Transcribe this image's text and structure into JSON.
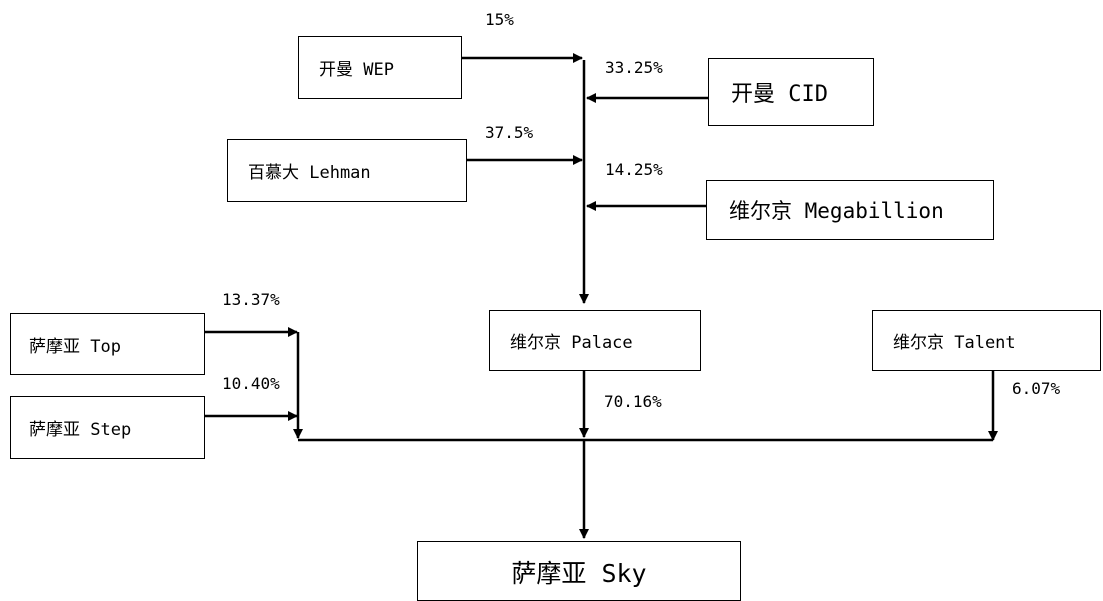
{
  "nodes": {
    "kaiman_wep": "开曼 WEP",
    "kaiman_cid": "开曼 CID",
    "baimuda_lehman": "百慕大 Lehman",
    "weierjing_megabillion": "维尔京 Megabillion",
    "samoa_top": "萨摩亚 Top",
    "samoa_step": "萨摩亚 Step",
    "weierjing_palace": "维尔京 Palace",
    "weierjing_talent": "维尔京 Talent",
    "samoa_sky": "萨摩亚 Sky"
  },
  "percentages": {
    "wep_to_palace": "15%",
    "cid_to_palace": "33.25%",
    "lehman_to_palace": "37.5%",
    "megabillion_to_palace": "14.25%",
    "top_to_sky": "13.37%",
    "step_to_sky": "10.40%",
    "palace_to_sky": "70.16%",
    "talent_to_sky": "6.07%"
  }
}
